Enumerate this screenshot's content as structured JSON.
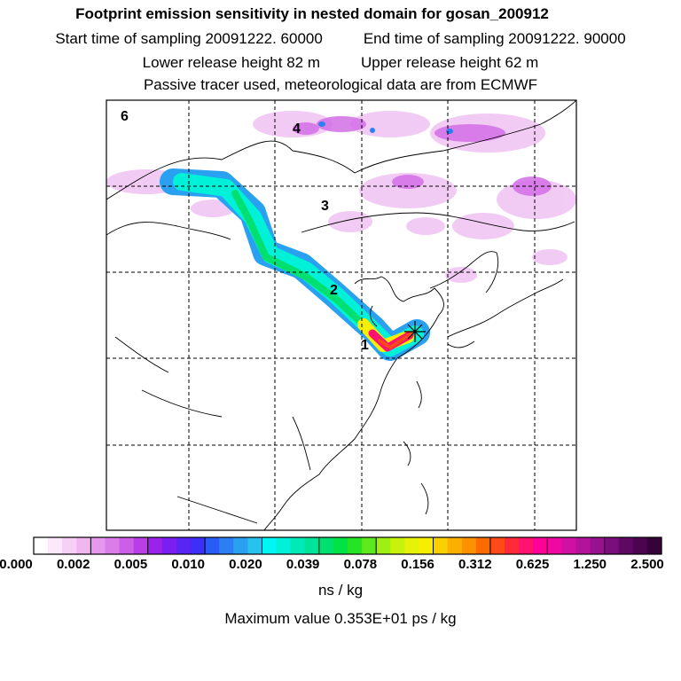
{
  "header": {
    "title": "Footprint emission sensitivity in nested domain for gosan_200912",
    "start_label": "Start time of sampling 20091222. 60000",
    "end_label": "End time of sampling 20091222. 90000",
    "lower_label": "Lower release height   82 m",
    "upper_label": "Upper release height   62 m",
    "note": "Passive tracer used, meteorological data are from ECMWF"
  },
  "markers": {
    "m1": "1",
    "m2": "2",
    "m3": "3",
    "m4": "4",
    "m6": "6"
  },
  "colorbar": {
    "labels": [
      "0.000",
      "0.002",
      "0.005",
      "0.010",
      "0.020",
      "0.039",
      "0.078",
      "0.156",
      "0.312",
      "0.625",
      "1.250",
      "2.500"
    ],
    "colors": [
      "#ffffff",
      "#fbe8fb",
      "#f6d0f6",
      "#efb6f0",
      "#e699ec",
      "#da7de8",
      "#cc5fe6",
      "#bb3de6",
      "#9a22ea",
      "#7a1ff0",
      "#5a24f5",
      "#3c30f8",
      "#2a5cf5",
      "#2b7ff2",
      "#2aa1f0",
      "#28c2ee",
      "#00f5f5",
      "#00f0d8",
      "#00eab8",
      "#00e39a",
      "#00e070",
      "#00e245",
      "#25e426",
      "#5ee81e",
      "#9cf014",
      "#c6f20c",
      "#e6f208",
      "#f8ee00",
      "#fad000",
      "#fbb000",
      "#fc9200",
      "#fc6a00",
      "#fd4a18",
      "#fe2a3a",
      "#ff1270",
      "#ff0098",
      "#ee0aa2",
      "#d010a0",
      "#b4129a",
      "#981290",
      "#7a0e7c",
      "#5e0864",
      "#4a0450",
      "#36023a"
    ],
    "units": "ns / kg",
    "max_value": "Maximum value  0.353E+01 ps / kg"
  }
}
